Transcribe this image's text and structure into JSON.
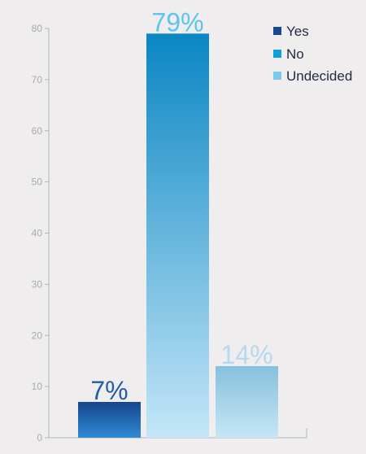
{
  "chart_data": {
    "type": "bar",
    "categories": [
      "Yes",
      "No",
      "Undecided"
    ],
    "values": [
      7,
      79,
      14
    ],
    "data_labels": [
      "7%",
      "79%",
      "14%"
    ],
    "ylim": [
      0,
      80
    ],
    "yticks": [
      "0",
      "10",
      "20",
      "30",
      "40",
      "50",
      "60",
      "70",
      "80"
    ],
    "title": "",
    "xlabel": "",
    "ylabel": "",
    "grid": false,
    "legend": {
      "placement": "top-right",
      "entries": [
        "Yes",
        "No",
        "Undecided"
      ]
    },
    "colors": {
      "Yes": "#17498f",
      "No": "#0ca1dc",
      "Undecided": "#79cbed",
      "yes_gradient": [
        "#17458b",
        "#2f8bd6"
      ],
      "no_gradient": [
        "#0a86c3",
        "#c4e6f7"
      ],
      "undecided_gradient": [
        "#86c0dc",
        "#c7e6f6"
      ],
      "label_yes": "#225ea8",
      "label_no": "#5bc4ef",
      "label_undecided": "#b4d9f0",
      "axis": "#b3b3b6",
      "background": "#efedee"
    }
  }
}
